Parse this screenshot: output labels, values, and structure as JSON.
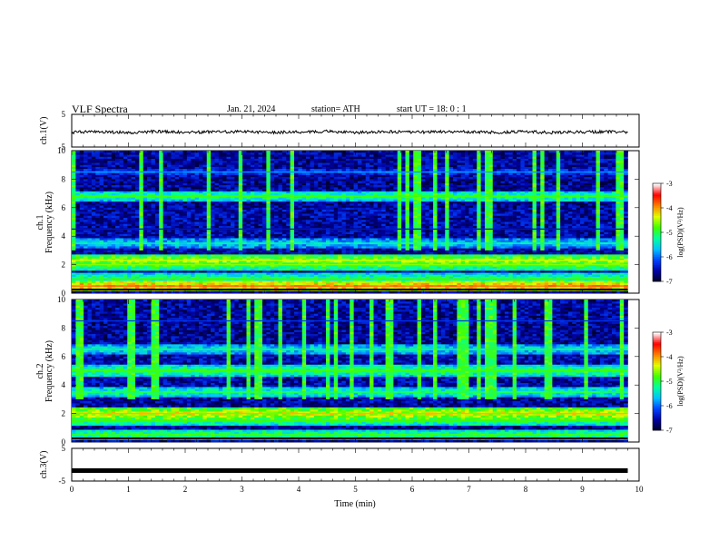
{
  "header": {
    "title": "VLF  Spectra",
    "date": "Jan. 21, 2024",
    "station": "station= ATH",
    "start_ut": "start  UT  =   18: 0   : 1"
  },
  "chart_data": [
    {
      "type": "line",
      "title": "",
      "ylabel": "ch.1(V)",
      "xlim": [
        0,
        10
      ],
      "ylim": [
        -5,
        5
      ],
      "y_ticks": [
        5,
        -5
      ],
      "description_series": "ch.1 waveform envelope",
      "x": [
        0,
        0.5,
        1,
        1.5,
        2,
        2.5,
        3,
        3.5,
        4,
        4.5,
        5,
        5.5,
        6,
        6.5,
        7,
        7.5,
        8,
        8.5,
        9,
        9.5,
        9.8
      ],
      "values": [
        -0.5,
        -0.3,
        -0.6,
        -0.2,
        -0.5,
        -0.4,
        -0.3,
        -0.5,
        -0.4,
        -0.2,
        -0.6,
        -0.3,
        -0.5,
        -0.3,
        -0.4,
        -0.5,
        -0.3,
        -0.6,
        -0.4,
        -0.3,
        -0.5
      ]
    },
    {
      "type": "heatmap",
      "title": "",
      "ylabel": "ch.1\nFrequency (kHz)",
      "xlim": [
        0,
        9.8
      ],
      "ylim": [
        0,
        10
      ],
      "y_ticks": [
        0,
        2,
        4,
        6,
        8,
        10
      ],
      "colorbar": {
        "label": "log(PSD)(V²/Hz)",
        "range": [
          -7,
          -3
        ],
        "ticks": [
          -3,
          -4,
          -5,
          -6,
          -7
        ]
      },
      "bands_khz": [
        {
          "freq": 0.5,
          "level": -4.0
        },
        {
          "freq": 1.0,
          "level": -5.0
        },
        {
          "freq": 2.0,
          "level": -4.8
        },
        {
          "freq": 2.3,
          "level": -4.5
        },
        {
          "freq": 3.5,
          "level": -5.5
        },
        {
          "freq": 4.5,
          "level": -6.6
        },
        {
          "freq": 6.8,
          "level": -5.0
        },
        {
          "freq": 8.5,
          "level": -6.0
        }
      ]
    },
    {
      "type": "heatmap",
      "title": "",
      "ylabel": "ch.2\nFrequency (kHz)",
      "xlim": [
        0,
        9.8
      ],
      "ylim": [
        0,
        10
      ],
      "y_ticks": [
        0,
        2,
        4,
        6,
        8,
        10
      ],
      "colorbar": {
        "label": "log(PSD)(V²/Hz)",
        "range": [
          -7,
          -3
        ],
        "ticks": [
          -3,
          -4,
          -5,
          -6,
          -7
        ]
      },
      "bands_khz": [
        {
          "freq": 0.5,
          "level": -5.0
        },
        {
          "freq": 1.5,
          "level": -5.0
        },
        {
          "freq": 2.0,
          "level": -4.3
        },
        {
          "freq": 3.5,
          "level": -5.2
        },
        {
          "freq": 5.0,
          "level": -5.0
        },
        {
          "freq": 6.5,
          "level": -5.3
        },
        {
          "freq": 8.5,
          "level": -6.4
        }
      ]
    },
    {
      "type": "line",
      "title": "",
      "ylabel": "ch.3(V)",
      "xlabel": "Time  (min)",
      "xlim": [
        0,
        10
      ],
      "ylim": [
        -5,
        5
      ],
      "y_ticks": [
        5,
        -5
      ],
      "x_ticks": [
        0,
        1,
        2,
        3,
        4,
        5,
        6,
        7,
        8,
        9,
        10
      ],
      "x": [
        0,
        9.8
      ],
      "values": [
        -1.8,
        -1.8
      ]
    }
  ],
  "colors": {
    "cmap": [
      "#000020",
      "#0000a0",
      "#0040ff",
      "#00c0ff",
      "#00ffa0",
      "#40ff00",
      "#e0ff00",
      "#ff8000",
      "#ff0000",
      "#ffffff"
    ]
  }
}
